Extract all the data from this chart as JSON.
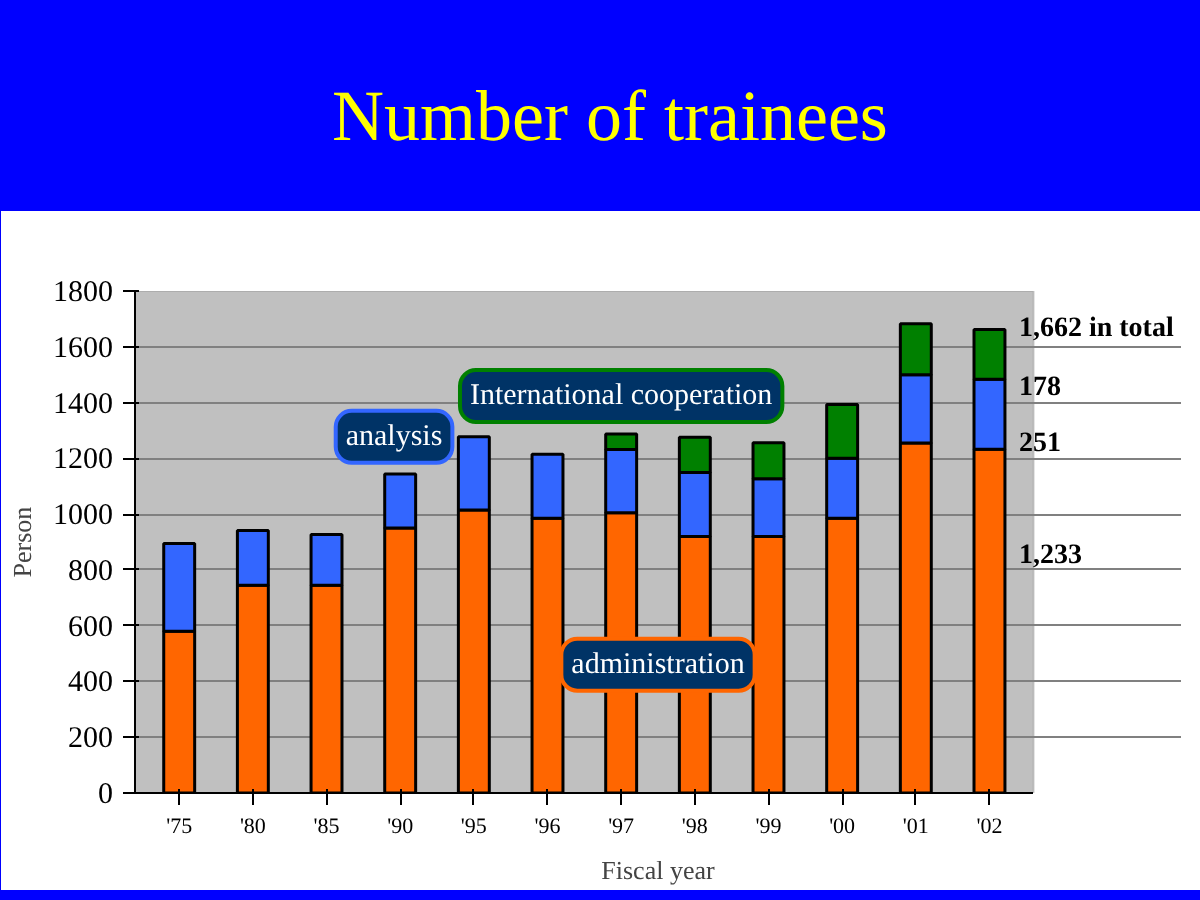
{
  "chart_data": {
    "type": "bar",
    "title": "Number of trainees",
    "xlabel": "Fiscal year",
    "ylabel": "Person",
    "categories": [
      "'75",
      "'80",
      "'85",
      "'90",
      "'95",
      "'96",
      "'97",
      "'98",
      "'99",
      "'00",
      "'01",
      "'02"
    ],
    "stacked": true,
    "ylim": [
      0,
      1800
    ],
    "yticks": [
      0,
      200,
      400,
      600,
      800,
      1000,
      1200,
      1400,
      1600,
      1800
    ],
    "grid": "y",
    "series": [
      {
        "name": "administration",
        "color": "#ff6600",
        "values": [
          580,
          745,
          745,
          950,
          1015,
          985,
          1005,
          920,
          920,
          985,
          1255,
          1233
        ]
      },
      {
        "name": "analysis",
        "color": "#3366ff",
        "values": [
          315,
          196,
          182,
          194,
          262,
          230,
          227,
          229,
          207,
          215,
          245,
          251
        ]
      },
      {
        "name": "International cooperation",
        "color": "#008000",
        "values": [
          null,
          null,
          null,
          null,
          null,
          null,
          55,
          127,
          129,
          193,
          183,
          178
        ]
      }
    ],
    "annotations": [
      {
        "text": "1,662 in total",
        "x": "'02",
        "y": 1662
      },
      "178",
      "251",
      "1,233"
    ]
  }
}
